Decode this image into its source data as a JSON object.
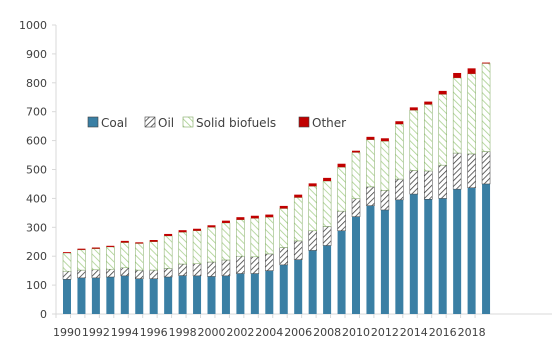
{
  "chart_data": {
    "type": "bar",
    "stacked": true,
    "categories": [
      "1990",
      "1991",
      "1992",
      "1993",
      "1994",
      "1995",
      "1996",
      "1997",
      "1998",
      "1999",
      "2000",
      "2001",
      "2002",
      "2003",
      "2004",
      "2005",
      "2006",
      "2007",
      "2008",
      "2009",
      "2010",
      "2011",
      "2012",
      "2013",
      "2014",
      "2015",
      "2016",
      "2017",
      "2018",
      "2019"
    ],
    "x_tick_labels": [
      "1990",
      "1992",
      "1994",
      "1996",
      "1998",
      "2000",
      "2002",
      "2004",
      "2006",
      "2008",
      "2010",
      "2012",
      "2014",
      "2016",
      "2018"
    ],
    "ylim": [
      0,
      1000
    ],
    "y_ticks": [
      0,
      100,
      200,
      300,
      400,
      500,
      600,
      700,
      800,
      900,
      1000
    ],
    "grid": false,
    "legend_position": "left-middle",
    "series": [
      {
        "name": "Coal",
        "color": "#3a7fa4",
        "pattern": "solid",
        "values": [
          120,
          125,
          125,
          128,
          132,
          122,
          122,
          128,
          133,
          132,
          130,
          132,
          140,
          140,
          150,
          170,
          188,
          220,
          237,
          288,
          337,
          375,
          360,
          395,
          415,
          397,
          400,
          432,
          437,
          450
        ]
      },
      {
        "name": "Oil",
        "color": "#404040",
        "pattern": "diagonal-hatch",
        "values": [
          28,
          27,
          28,
          27,
          28,
          30,
          30,
          30,
          40,
          42,
          50,
          55,
          60,
          58,
          58,
          60,
          65,
          68,
          66,
          68,
          62,
          65,
          68,
          72,
          82,
          98,
          115,
          125,
          117,
          112
        ]
      },
      {
        "name": "Solid biofuels",
        "color": "#a9d18e",
        "pattern": "diagonal-green",
        "values": [
          63,
          70,
          73,
          77,
          87,
          92,
          98,
          112,
          110,
          114,
          120,
          128,
          126,
          133,
          127,
          135,
          150,
          154,
          157,
          152,
          160,
          163,
          170,
          190,
          208,
          230,
          245,
          260,
          277,
          305
        ]
      },
      {
        "name": "Other",
        "color": "#c00000",
        "pattern": "solid",
        "values": [
          3,
          4,
          4,
          4,
          6,
          4,
          6,
          7,
          7,
          7,
          7,
          8,
          9,
          9,
          9,
          9,
          10,
          10,
          11,
          12,
          6,
          10,
          10,
          10,
          10,
          10,
          12,
          17,
          19,
          3
        ]
      }
    ]
  }
}
